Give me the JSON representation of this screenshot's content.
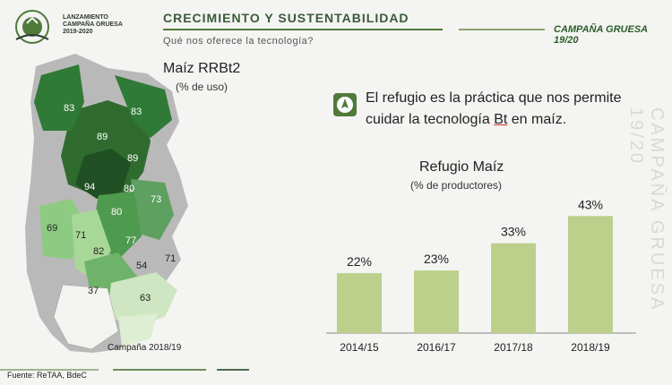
{
  "header": {
    "logo_lines": [
      "LANZAMIENTO",
      "CAMPAÑA GRUESA",
      "2019-2020"
    ],
    "title": "CRECIMIENTO Y SUSTENTABILIDAD",
    "subtitle": "Qué nos oferece la tecnología?",
    "badge": "CAMPAÑA GRUESA 19/20"
  },
  "map": {
    "title": "Maíz  RRBt2",
    "subtitle": "(% de uso)",
    "labels": [
      "83",
      "83",
      "89",
      "89",
      "94",
      "80",
      "73",
      "80",
      "69",
      "71",
      "77",
      "82",
      "54",
      "71",
      "37",
      "63"
    ],
    "campaign": "Campaña 2018/19"
  },
  "refugio": {
    "line1": "El refugio es la práctica que nos permite",
    "line2_pre": "cuidar la tecnología ",
    "line2_bt": "Bt",
    "line2_post": " en maíz."
  },
  "chart_data": {
    "type": "bar",
    "title": "Refugio Maíz",
    "subtitle": "(% de productores)",
    "categories": [
      "2014/15",
      "2016/17",
      "2017/18",
      "2018/19"
    ],
    "values": [
      22,
      23,
      33,
      43
    ],
    "value_labels": [
      "22%",
      "23%",
      "33%",
      "43%"
    ],
    "ylim": [
      0,
      50
    ],
    "bar_color": "#bcd08c",
    "grid": false
  },
  "footer": {
    "source": "Fuente: ReTAA, BdeC"
  },
  "watermark": "CAMPAÑA GRUESA 19/20",
  "colors": {
    "accent": "#4e7a3a",
    "bar": "#bcd08c"
  }
}
